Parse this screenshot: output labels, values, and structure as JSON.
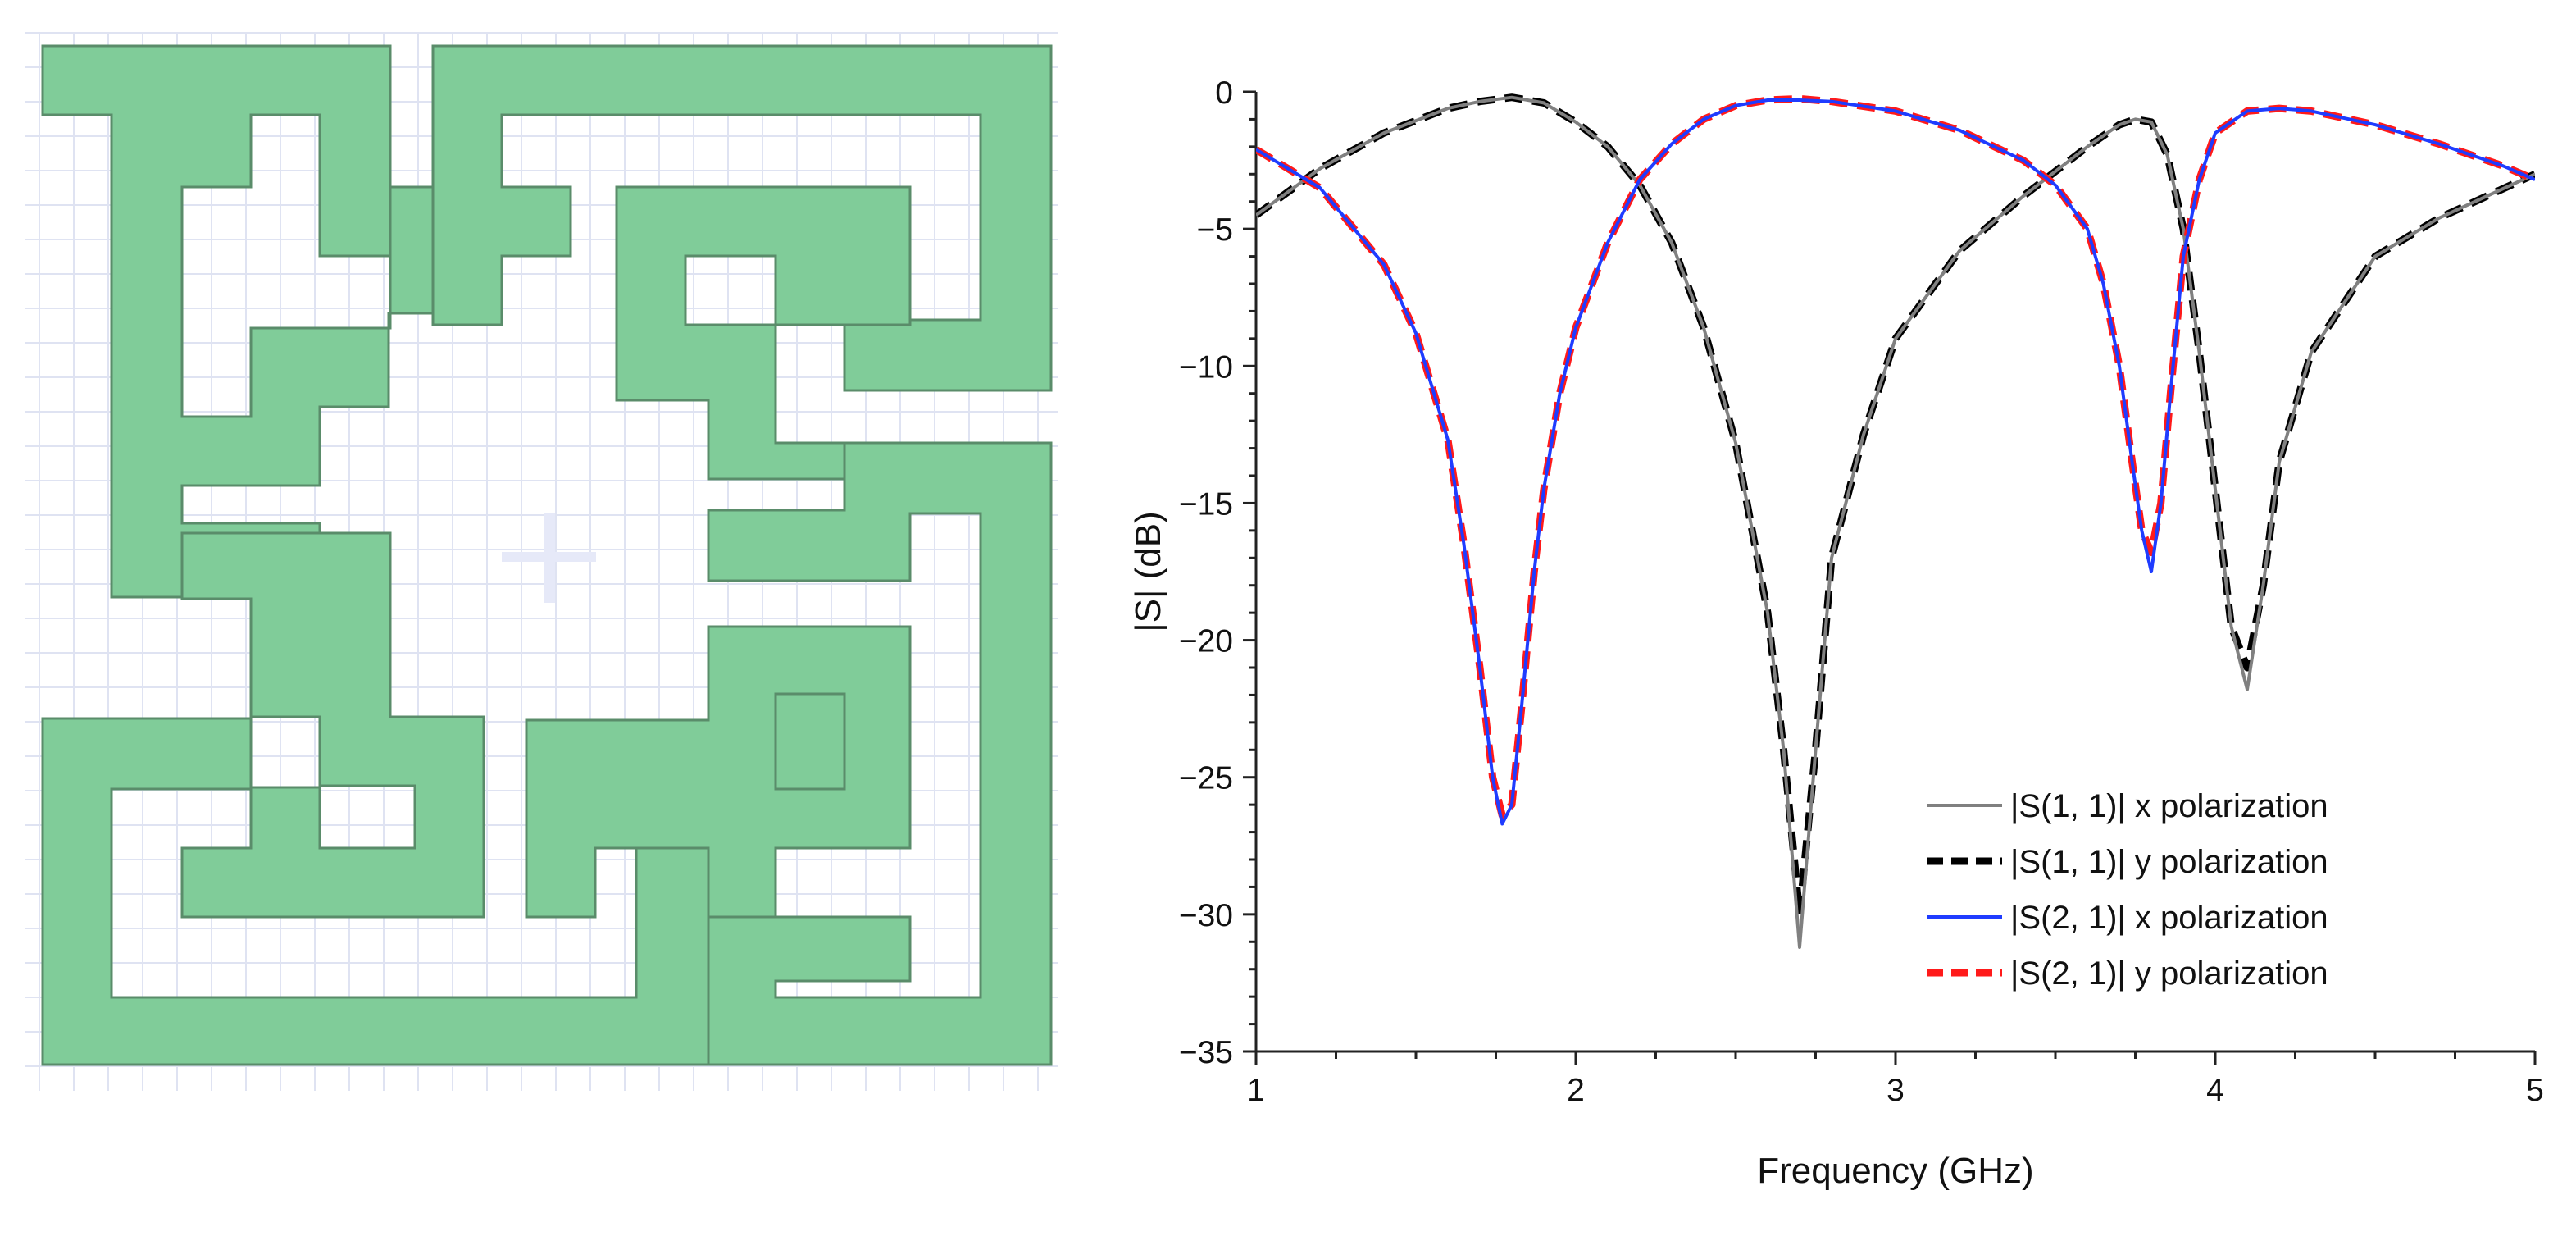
{
  "figure": {
    "unit_cell": {
      "metal_color": "#80cc99",
      "metal_edge_color": "#5a8c6a",
      "grid_color": "#dfe3f2"
    },
    "chart_data": {
      "type": "line",
      "xlabel": "Frequency (GHz)",
      "ylabel": "|S| (dB)",
      "xlim": [
        1,
        5
      ],
      "ylim": [
        -35,
        0
      ],
      "xticks": [
        1,
        2,
        3,
        4,
        5
      ],
      "yticks": [
        0,
        -5,
        -10,
        -15,
        -20,
        -25,
        -30,
        -35
      ],
      "grid": false,
      "legend_position": "bottom-right",
      "series": [
        {
          "name": "|S(1, 1)| x polarization",
          "color": "#808080",
          "dash": "solid",
          "x": [
            1.0,
            1.2,
            1.4,
            1.6,
            1.7,
            1.8,
            1.9,
            2.0,
            2.1,
            2.2,
            2.3,
            2.4,
            2.5,
            2.6,
            2.65,
            2.7,
            2.75,
            2.8,
            2.9,
            3.0,
            3.2,
            3.4,
            3.6,
            3.7,
            3.75,
            3.8,
            3.85,
            3.9,
            3.95,
            4.0,
            4.05,
            4.1,
            4.15,
            4.2,
            4.3,
            4.5,
            4.7,
            4.85,
            5.0
          ],
          "y": [
            -4.5,
            -2.8,
            -1.5,
            -0.6,
            -0.35,
            -0.2,
            -0.4,
            -1.1,
            -2.0,
            -3.4,
            -5.5,
            -8.6,
            -12.8,
            -19.0,
            -24.0,
            -31.2,
            -24.0,
            -17.0,
            -12.5,
            -9.0,
            -5.8,
            -3.8,
            -2.0,
            -1.2,
            -1.0,
            -1.1,
            -2.3,
            -5.0,
            -9.5,
            -14.5,
            -19.5,
            -21.8,
            -18.0,
            -13.5,
            -9.5,
            -6.0,
            -4.6,
            -3.8,
            -3.0
          ]
        },
        {
          "name": "|S(1, 1)| y polarization",
          "color": "#000000",
          "dash": "black-dashed",
          "x": [
            1.0,
            1.2,
            1.4,
            1.6,
            1.7,
            1.8,
            1.9,
            2.0,
            2.1,
            2.2,
            2.3,
            2.4,
            2.5,
            2.6,
            2.65,
            2.7,
            2.75,
            2.8,
            2.9,
            3.0,
            3.2,
            3.4,
            3.6,
            3.7,
            3.75,
            3.8,
            3.85,
            3.9,
            3.95,
            4.0,
            4.05,
            4.1,
            4.15,
            4.2,
            4.3,
            4.5,
            4.7,
            4.85,
            5.0
          ],
          "y": [
            -4.5,
            -2.8,
            -1.5,
            -0.6,
            -0.35,
            -0.2,
            -0.4,
            -1.1,
            -2.0,
            -3.4,
            -5.5,
            -8.6,
            -12.8,
            -19.0,
            -24.0,
            -30.0,
            -24.0,
            -17.0,
            -12.5,
            -9.0,
            -5.8,
            -3.8,
            -2.0,
            -1.2,
            -1.0,
            -1.1,
            -2.3,
            -5.0,
            -9.5,
            -14.5,
            -19.5,
            -21.0,
            -18.0,
            -13.5,
            -9.5,
            -6.0,
            -4.6,
            -3.8,
            -3.0
          ]
        },
        {
          "name": "|S(2, 1)| x polarization",
          "color": "#1f3cff",
          "dash": "solid",
          "x": [
            1.0,
            1.2,
            1.4,
            1.5,
            1.6,
            1.65,
            1.7,
            1.74,
            1.77,
            1.8,
            1.83,
            1.87,
            1.9,
            1.95,
            2.0,
            2.1,
            2.2,
            2.3,
            2.4,
            2.5,
            2.6,
            2.7,
            2.8,
            3.0,
            3.2,
            3.4,
            3.5,
            3.6,
            3.65,
            3.7,
            3.74,
            3.77,
            3.8,
            3.83,
            3.86,
            3.9,
            3.95,
            4.0,
            4.1,
            4.2,
            4.3,
            4.5,
            4.7,
            4.9,
            5.0
          ],
          "y": [
            -2.1,
            -3.5,
            -6.3,
            -8.8,
            -12.7,
            -16.5,
            -21.0,
            -25.0,
            -26.7,
            -26.0,
            -22.5,
            -17.5,
            -14.5,
            -11.0,
            -8.6,
            -5.5,
            -3.2,
            -1.9,
            -1.0,
            -0.5,
            -0.3,
            -0.3,
            -0.35,
            -0.7,
            -1.4,
            -2.5,
            -3.4,
            -5.0,
            -7.0,
            -10.0,
            -13.5,
            -16.0,
            -17.5,
            -15.0,
            -11.0,
            -6.0,
            -3.2,
            -1.5,
            -0.7,
            -0.6,
            -0.7,
            -1.2,
            -1.9,
            -2.7,
            -3.2
          ]
        },
        {
          "name": "|S(2, 1)| y polarization",
          "color": "#ff1a1a",
          "dash": "red-dashed",
          "x": [
            1.0,
            1.2,
            1.4,
            1.5,
            1.6,
            1.65,
            1.7,
            1.74,
            1.77,
            1.8,
            1.83,
            1.87,
            1.9,
            1.95,
            2.0,
            2.1,
            2.2,
            2.3,
            2.4,
            2.5,
            2.6,
            2.7,
            2.8,
            3.0,
            3.2,
            3.4,
            3.5,
            3.6,
            3.65,
            3.7,
            3.74,
            3.77,
            3.8,
            3.83,
            3.86,
            3.9,
            3.95,
            4.0,
            4.1,
            4.2,
            4.3,
            4.5,
            4.7,
            4.9,
            5.0
          ],
          "y": [
            -2.1,
            -3.5,
            -6.3,
            -8.8,
            -12.7,
            -16.5,
            -21.0,
            -25.0,
            -26.4,
            -26.0,
            -22.5,
            -17.5,
            -14.5,
            -11.0,
            -8.6,
            -5.5,
            -3.2,
            -1.9,
            -1.0,
            -0.5,
            -0.3,
            -0.25,
            -0.35,
            -0.7,
            -1.4,
            -2.5,
            -3.4,
            -5.0,
            -7.0,
            -10.0,
            -13.5,
            -16.0,
            -16.8,
            -15.0,
            -11.0,
            -6.0,
            -3.2,
            -1.5,
            -0.7,
            -0.6,
            -0.7,
            -1.2,
            -1.9,
            -2.7,
            -3.2
          ]
        }
      ]
    }
  }
}
